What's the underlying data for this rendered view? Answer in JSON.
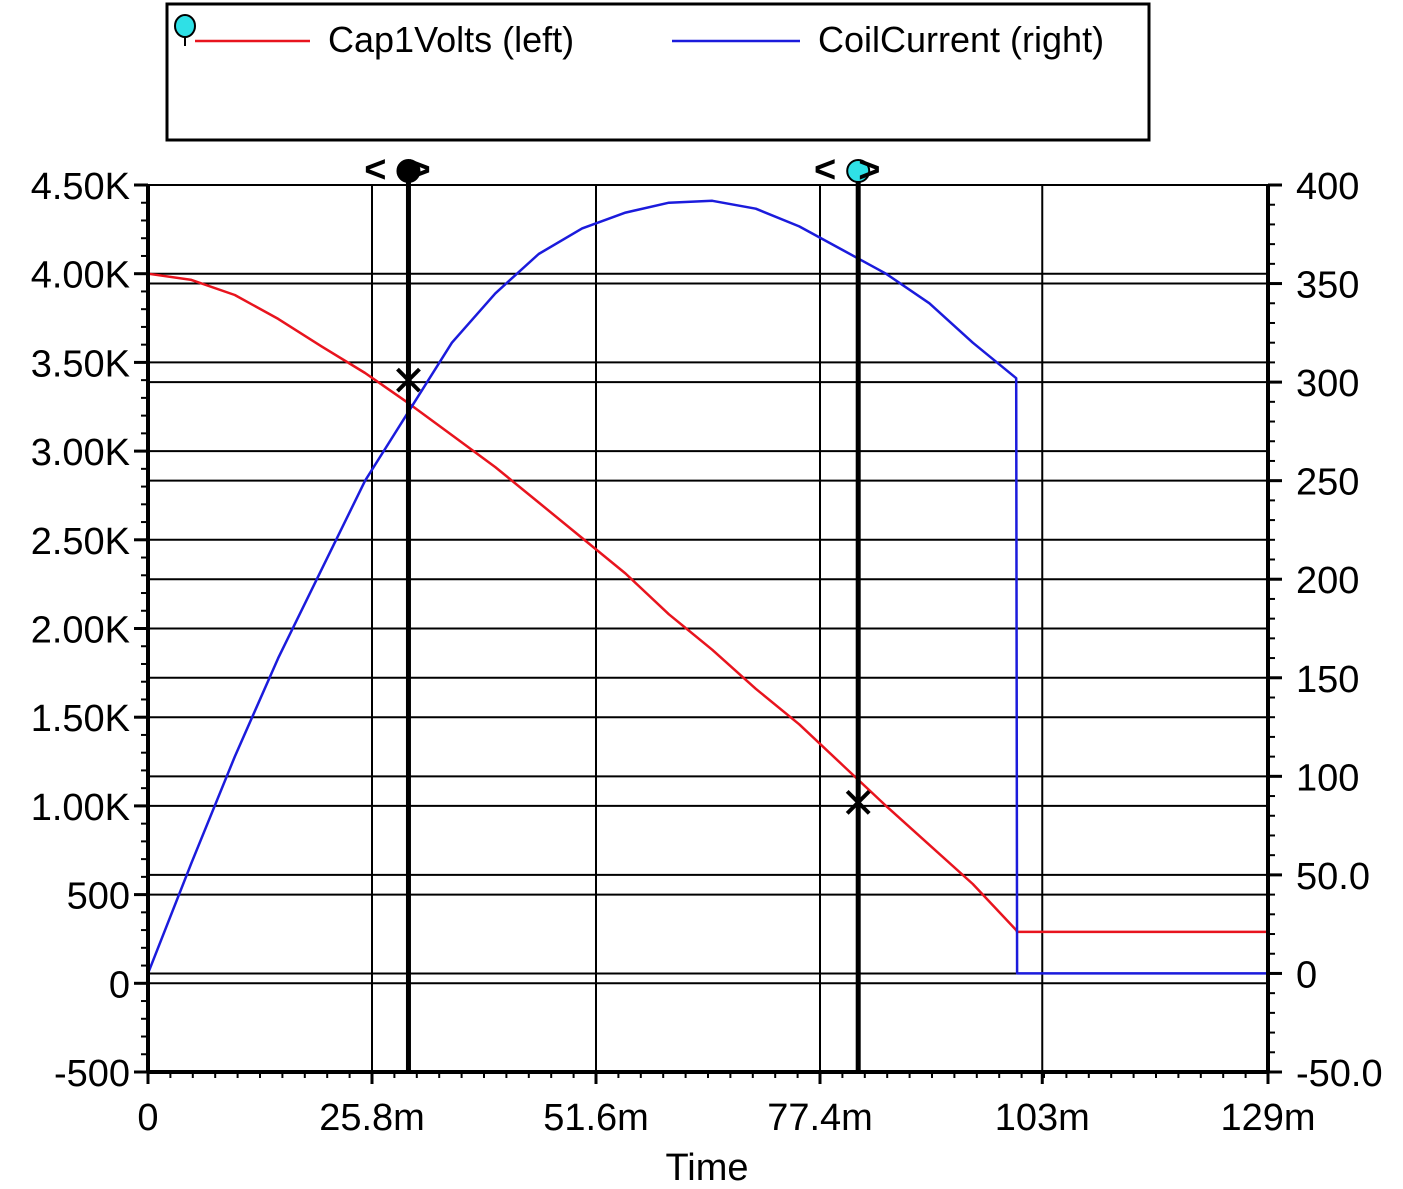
{
  "chart_data": {
    "type": "line",
    "xlabel": "Time",
    "x_tick_labels": [
      "0",
      "25.8m",
      "51.6m",
      "77.4m",
      "103m",
      "129m"
    ],
    "x_ticks": [
      0,
      0.0258,
      0.0516,
      0.0774,
      0.103,
      0.129
    ],
    "xlim": [
      0,
      0.129
    ],
    "y_left_tick_labels": [
      "-500",
      "0",
      "500",
      "1.00K",
      "1.50K",
      "2.00K",
      "2.50K",
      "3.00K",
      "3.50K",
      "4.00K",
      "4.50K"
    ],
    "y_left_ticks": [
      -500,
      0,
      500,
      1000,
      1500,
      2000,
      2500,
      3000,
      3500,
      4000,
      4500
    ],
    "ylim_left": [
      -500,
      4500
    ],
    "y_right_tick_labels": [
      "-50.0",
      "0",
      "50.0",
      "100",
      "150",
      "200",
      "250",
      "300",
      "350",
      "400"
    ],
    "y_right_ticks": [
      -50,
      0,
      50,
      100,
      150,
      200,
      250,
      300,
      350,
      400
    ],
    "ylim_right": [
      -50,
      400
    ],
    "grid": true,
    "legend_position": "top",
    "series": [
      {
        "name": "Cap1Volts (left)",
        "axis": "left",
        "color": "#e8141e",
        "x": [
          0,
          0.005,
          0.01,
          0.015,
          0.02,
          0.025,
          0.03,
          0.035,
          0.04,
          0.045,
          0.05,
          0.055,
          0.06,
          0.065,
          0.07,
          0.075,
          0.08,
          0.085,
          0.09,
          0.095,
          0.1,
          0.1001,
          0.129
        ],
        "y": [
          4000,
          3965,
          3880,
          3745,
          3590,
          3440,
          3270,
          3090,
          2910,
          2710,
          2510,
          2310,
          2080,
          1880,
          1660,
          1460,
          1230,
          1000,
          780,
          560,
          300,
          290,
          290
        ]
      },
      {
        "name": "CoilCurrent (right)",
        "axis": "right",
        "color": "#1b1bdc",
        "x": [
          0,
          0.005,
          0.01,
          0.015,
          0.02,
          0.025,
          0.03,
          0.035,
          0.04,
          0.045,
          0.05,
          0.055,
          0.06,
          0.065,
          0.07,
          0.075,
          0.08,
          0.085,
          0.09,
          0.095,
          0.1,
          0.1001,
          0.129
        ],
        "y": [
          0,
          56,
          110,
          160,
          205,
          250,
          285,
          320,
          345,
          365,
          378,
          386,
          391,
          392,
          388,
          379,
          367,
          355,
          340,
          320,
          302,
          0,
          0
        ]
      }
    ],
    "markers": [
      {
        "x": 0.03,
        "y": 3400,
        "axis": "left"
      },
      {
        "x": 0.0818,
        "y": 1020,
        "axis": "left"
      }
    ],
    "cursors": [
      {
        "x": 0.03,
        "symbol": "<>",
        "knob_color": "#000000"
      },
      {
        "x": 0.0818,
        "symbol": "<>",
        "knob_color": "#2fe0e6"
      }
    ],
    "legend_pin_color": "#2fe0e6"
  }
}
